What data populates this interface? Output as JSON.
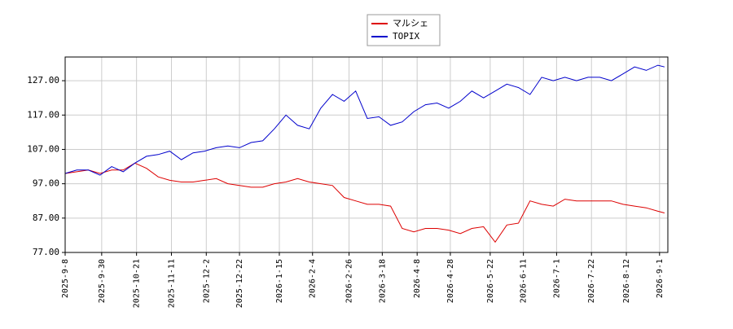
{
  "chart_data": {
    "type": "line",
    "x": [
      "2025-9-8",
      "2025-9-15",
      "2025-9-22",
      "2025-9-29",
      "2025-10-6",
      "2025-10-13",
      "2025-10-20",
      "2025-10-27",
      "2025-11-3",
      "2025-11-10",
      "2025-11-17",
      "2025-11-24",
      "2025-12-1",
      "2025-12-8",
      "2025-12-15",
      "2025-12-22",
      "2025-12-29",
      "2026-1-5",
      "2026-1-12",
      "2026-1-19",
      "2026-1-26",
      "2026-2-2",
      "2026-2-9",
      "2026-2-16",
      "2026-2-23",
      "2026-3-2",
      "2026-3-9",
      "2026-3-16",
      "2026-3-23",
      "2026-3-30",
      "2026-4-6",
      "2026-4-13",
      "2026-4-20",
      "2026-4-27",
      "2026-5-4",
      "2026-5-11",
      "2026-5-18",
      "2026-5-25",
      "2026-6-1",
      "2026-6-8",
      "2026-6-15",
      "2026-6-22",
      "2026-6-29",
      "2026-7-6",
      "2026-7-13",
      "2026-7-20",
      "2026-7-27",
      "2026-8-3",
      "2026-8-10",
      "2026-8-17",
      "2026-8-24",
      "2026-8-31",
      "2026-9-4"
    ],
    "series": [
      {
        "name": "マルシェ",
        "color": "#dd0000",
        "values": [
          100,
          100.5,
          101,
          100,
          101,
          101,
          103,
          101.5,
          99,
          98,
          97.5,
          97.5,
          98,
          98.5,
          97,
          96.5,
          96,
          96,
          97,
          97.5,
          98.5,
          97.5,
          97,
          96.5,
          93,
          92,
          91,
          91,
          90.5,
          84,
          83,
          84,
          84,
          83.5,
          82.5,
          84,
          84.5,
          80,
          85,
          85.5,
          92,
          91,
          90.5,
          92.5,
          92,
          92,
          92,
          92,
          91,
          90.5,
          90,
          89,
          88.5
        ]
      },
      {
        "name": "TOPIX",
        "color": "#0000cc",
        "values": [
          100,
          101,
          101,
          99.5,
          102,
          100.5,
          103,
          105,
          105.5,
          106.5,
          104,
          106,
          106.5,
          107.5,
          108,
          107.5,
          109,
          109.5,
          113,
          117,
          114,
          113,
          119,
          123,
          121,
          124,
          116,
          116.5,
          114,
          115,
          118,
          120,
          120.5,
          119,
          121,
          124,
          122,
          124,
          126,
          125,
          123,
          128,
          127,
          128,
          127,
          128,
          128,
          127,
          129,
          131,
          130,
          131.5,
          131
        ]
      }
    ],
    "xlim": [
      "2025-9-8",
      "2026-9-6"
    ],
    "xticks": [
      "2025-9-8",
      "2025-9-30",
      "2025-10-21",
      "2025-11-11",
      "2025-12-2",
      "2025-12-22",
      "2026-1-15",
      "2026-2-4",
      "2026-2-26",
      "2026-3-18",
      "2026-4-8",
      "2026-4-28",
      "2026-5-22",
      "2026-6-11",
      "2026-7-1",
      "2026-7-22",
      "2026-8-12",
      "2026-9-1"
    ],
    "ylim": [
      77,
      133.9
    ],
    "yticks": [
      {
        "value": 77,
        "label": "77.00"
      },
      {
        "value": 87,
        "label": "87.00"
      },
      {
        "value": 97,
        "label": "97.00"
      },
      {
        "value": 107,
        "label": "107.00"
      },
      {
        "value": 117,
        "label": "117.00"
      },
      {
        "value": 127,
        "label": "127.00"
      }
    ],
    "grid": true
  }
}
